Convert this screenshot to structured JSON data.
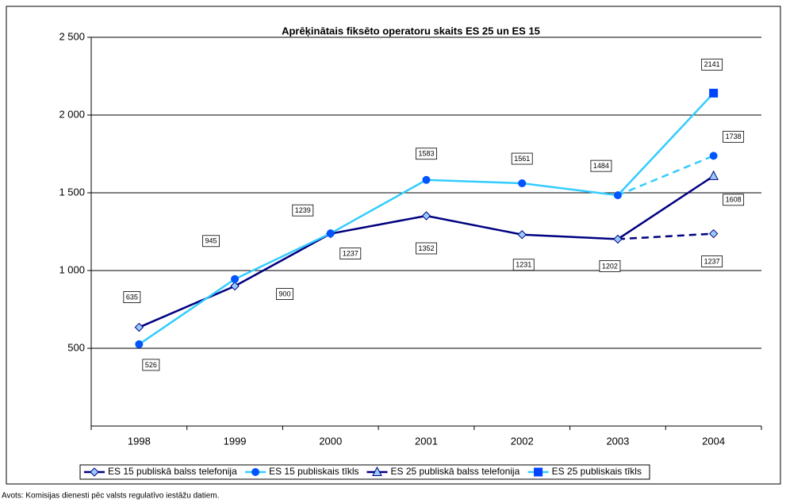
{
  "chart_data": {
    "type": "line",
    "title": "Aprēķinātais fiksēto operatoru skaits ES 25 un ES 15",
    "categories": [
      "1998",
      "1999",
      "2000",
      "2001",
      "2002",
      "2003",
      "2004"
    ],
    "series": [
      {
        "name": "ES 15 publiskā balss telefonija",
        "color": "#000080",
        "marker": "diamond",
        "marker_color": "#99ccff",
        "dashed_from": "2003",
        "values": [
          635,
          900,
          1237,
          1352,
          1231,
          1202,
          1237
        ]
      },
      {
        "name": "ES 15 publiskais tīkls",
        "color": "#33ccff",
        "marker": "circle",
        "marker_color": "#0055ff",
        "dashed_from": "2003",
        "values": [
          526,
          945,
          1239,
          1583,
          1561,
          1484,
          1738
        ]
      },
      {
        "name": "ES 25 publiskā balss telefonija",
        "color": "#000080",
        "marker": "triangle",
        "marker_color": "#99ccff",
        "values": [
          null,
          null,
          null,
          null,
          null,
          1202,
          1608
        ]
      },
      {
        "name": "ES 25 publiskais tīkls",
        "color": "#33ccff",
        "marker": "square",
        "marker_color": "#0044ff",
        "values": [
          null,
          null,
          null,
          null,
          null,
          1484,
          2141
        ]
      }
    ],
    "ylim": [
      0,
      2500
    ],
    "yticks": [
      {
        "value": 500,
        "label": "500"
      },
      {
        "value": 1000,
        "label": "1 000"
      },
      {
        "value": 1500,
        "label": "1 500"
      },
      {
        "value": 2000,
        "label": "2 000"
      },
      {
        "value": 2500,
        "label": "2 500"
      }
    ],
    "grid": true,
    "legend": "bottom",
    "source": "Avots: Komisijas dienesti pēc valsts regulatīvo iestāžu datiem."
  }
}
